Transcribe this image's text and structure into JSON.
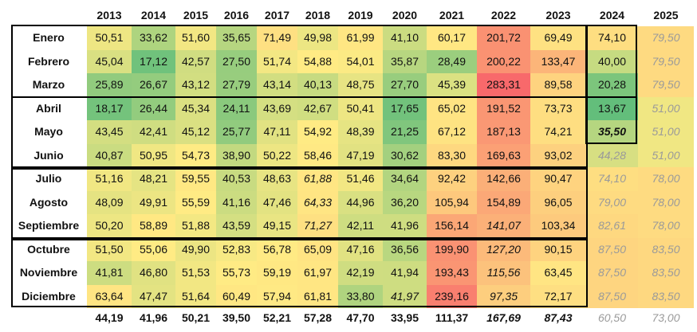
{
  "years": [
    "2013",
    "2014",
    "2015",
    "2016",
    "2017",
    "2018",
    "2019",
    "2020",
    "2021",
    "2022",
    "2023",
    "2024",
    "2025"
  ],
  "months": [
    "Enero",
    "Febrero",
    "Marzo",
    "Abril",
    "Mayo",
    "Junio",
    "Julio",
    "Agosto",
    "Septiembre",
    "Octubre",
    "Noviembre",
    "Diciembre"
  ],
  "rows": [
    [
      "50,51",
      "33,62",
      "51,60",
      "35,65",
      "71,49",
      "49,98",
      "61,99",
      "41,10",
      "60,17",
      "201,72",
      "69,49",
      "74,10",
      "79,50"
    ],
    [
      "45,04",
      "17,12",
      "42,57",
      "27,50",
      "51,74",
      "54,88",
      "54,01",
      "35,87",
      "28,49",
      "200,22",
      "133,47",
      "40,00",
      "79,50"
    ],
    [
      "25,89",
      "26,67",
      "43,12",
      "27,79",
      "43,14",
      "40,13",
      "48,75",
      "27,70",
      "45,39",
      "283,31",
      "89,58",
      "20,28",
      "79,50"
    ],
    [
      "18,17",
      "26,44",
      "45,34",
      "24,11",
      "43,69",
      "42,67",
      "50,41",
      "17,65",
      "65,02",
      "191,52",
      "73,73",
      "13,67",
      "51,00"
    ],
    [
      "43,45",
      "42,41",
      "45,12",
      "25,77",
      "47,11",
      "54,92",
      "48,39",
      "21,25",
      "67,12",
      "187,13",
      "74,21",
      "35,50",
      "51,00"
    ],
    [
      "40,87",
      "50,95",
      "54,73",
      "38,90",
      "50,22",
      "58,46",
      "47,19",
      "30,62",
      "83,30",
      "169,63",
      "93,02",
      "44,28",
      "51,00"
    ],
    [
      "51,16",
      "48,21",
      "59,55",
      "40,53",
      "48,63",
      "61,88",
      "51,46",
      "34,64",
      "92,42",
      "142,66",
      "90,47",
      "74,10",
      "78,00"
    ],
    [
      "48,09",
      "49,91",
      "55,59",
      "41,16",
      "47,46",
      "64,33",
      "44,96",
      "36,20",
      "105,94",
      "154,89",
      "96,05",
      "79,00",
      "78,00"
    ],
    [
      "50,20",
      "58,89",
      "51,88",
      "43,59",
      "49,15",
      "71,27",
      "42,11",
      "41,96",
      "156,14",
      "141,07",
      "103,34",
      "82,61",
      "78,00"
    ],
    [
      "51,50",
      "55,06",
      "49,90",
      "52,83",
      "56,78",
      "65,09",
      "47,16",
      "36,56",
      "199,90",
      "127,20",
      "90,15",
      "87,50",
      "83,50"
    ],
    [
      "41,81",
      "46,80",
      "51,53",
      "55,73",
      "59,19",
      "61,97",
      "42,19",
      "41,94",
      "193,43",
      "115,56",
      "63,45",
      "87,50",
      "83,50"
    ],
    [
      "63,64",
      "47,47",
      "51,64",
      "60,49",
      "57,94",
      "61,81",
      "33,80",
      "41,97",
      "239,16",
      "97,35",
      "72,17",
      "87,50",
      "83,50"
    ]
  ],
  "totals": [
    "44,19",
    "41,96",
    "50,21",
    "39,50",
    "52,21",
    "57,28",
    "47,70",
    "33,95",
    "111,37",
    "167,69",
    "87,43",
    "60,50",
    "73,00"
  ],
  "colors": {
    "dark_green": "#63be7b",
    "yellow": "#ffeb84",
    "orange": "#fbaa77",
    "red": "#f8696b"
  }
}
